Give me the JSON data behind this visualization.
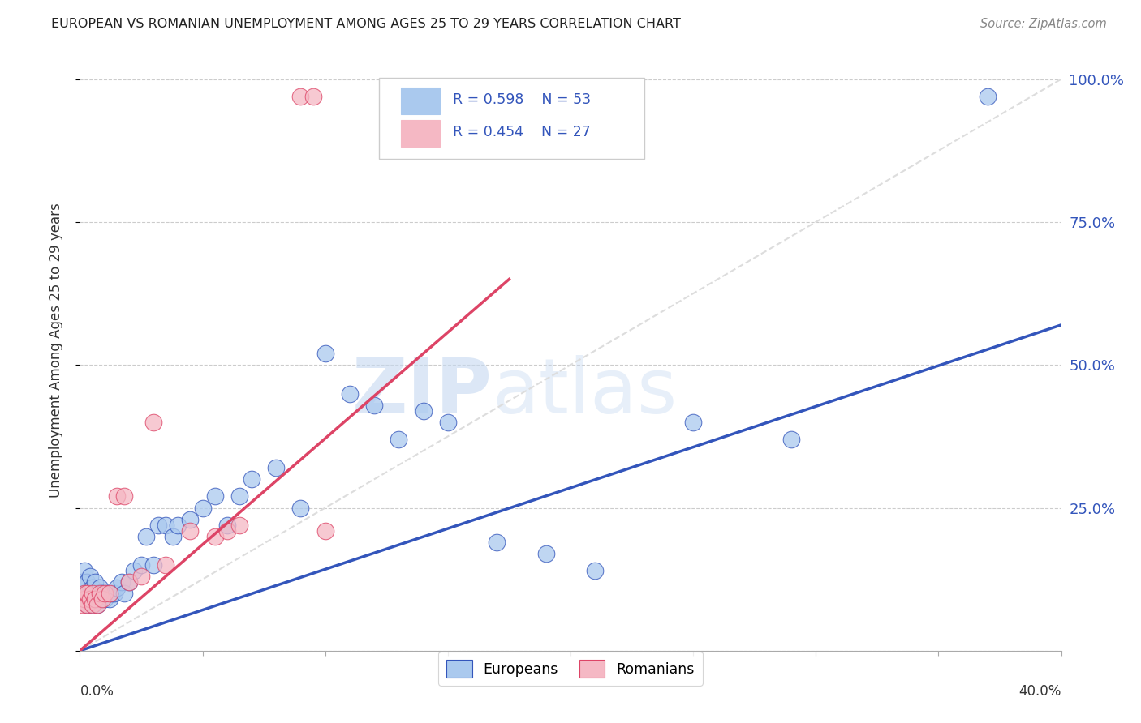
{
  "title": "EUROPEAN VS ROMANIAN UNEMPLOYMENT AMONG AGES 25 TO 29 YEARS CORRELATION CHART",
  "source": "Source: ZipAtlas.com",
  "ylabel": "Unemployment Among Ages 25 to 29 years",
  "legend_blue_R": "R = 0.598",
  "legend_blue_N": "N = 53",
  "legend_pink_R": "R = 0.454",
  "legend_pink_N": "N = 27",
  "watermark_zip": "ZIP",
  "watermark_atlas": "atlas",
  "blue_color": "#aac9ee",
  "pink_color": "#f5b8c4",
  "blue_line_color": "#3355bb",
  "pink_line_color": "#dd4466",
  "ref_line_color": "#dddddd",
  "blue_scatter_x": [
    0.001,
    0.002,
    0.002,
    0.003,
    0.003,
    0.004,
    0.004,
    0.005,
    0.005,
    0.006,
    0.006,
    0.007,
    0.007,
    0.008,
    0.008,
    0.009,
    0.01,
    0.011,
    0.012,
    0.013,
    0.014,
    0.015,
    0.017,
    0.018,
    0.02,
    0.022,
    0.025,
    0.027,
    0.03,
    0.032,
    0.035,
    0.038,
    0.04,
    0.045,
    0.05,
    0.055,
    0.06,
    0.065,
    0.07,
    0.08,
    0.09,
    0.1,
    0.11,
    0.12,
    0.13,
    0.14,
    0.15,
    0.17,
    0.19,
    0.21,
    0.25,
    0.29,
    0.37
  ],
  "blue_scatter_y": [
    0.12,
    0.1,
    0.14,
    0.08,
    0.12,
    0.09,
    0.13,
    0.08,
    0.11,
    0.09,
    0.12,
    0.08,
    0.1,
    0.09,
    0.11,
    0.1,
    0.09,
    0.1,
    0.09,
    0.1,
    0.1,
    0.11,
    0.12,
    0.1,
    0.12,
    0.14,
    0.15,
    0.2,
    0.15,
    0.22,
    0.22,
    0.2,
    0.22,
    0.23,
    0.25,
    0.27,
    0.22,
    0.27,
    0.3,
    0.32,
    0.25,
    0.52,
    0.45,
    0.43,
    0.37,
    0.42,
    0.4,
    0.19,
    0.17,
    0.14,
    0.4,
    0.37,
    0.97
  ],
  "pink_scatter_x": [
    0.001,
    0.002,
    0.002,
    0.003,
    0.003,
    0.004,
    0.005,
    0.005,
    0.006,
    0.007,
    0.008,
    0.009,
    0.01,
    0.012,
    0.015,
    0.018,
    0.02,
    0.025,
    0.03,
    0.035,
    0.045,
    0.055,
    0.06,
    0.065,
    0.09,
    0.095,
    0.1
  ],
  "pink_scatter_y": [
    0.08,
    0.09,
    0.1,
    0.08,
    0.1,
    0.09,
    0.08,
    0.1,
    0.09,
    0.08,
    0.1,
    0.09,
    0.1,
    0.1,
    0.27,
    0.27,
    0.12,
    0.13,
    0.4,
    0.15,
    0.21,
    0.2,
    0.21,
    0.22,
    0.97,
    0.97,
    0.21
  ],
  "blue_trend_x0": 0.0,
  "blue_trend_y0": 0.0,
  "blue_trend_x1": 0.4,
  "blue_trend_y1": 0.57,
  "pink_trend_x0": 0.0,
  "pink_trend_y0": 0.0,
  "pink_trend_x1": 0.175,
  "pink_trend_y1": 0.65,
  "xlim": [
    0.0,
    0.4
  ],
  "ylim": [
    0.0,
    1.05
  ],
  "right_yticks": [
    0.25,
    0.5,
    0.75,
    1.0
  ],
  "right_yticklabels": [
    "25.0%",
    "50.0%",
    "75.0%",
    "100.0%"
  ]
}
